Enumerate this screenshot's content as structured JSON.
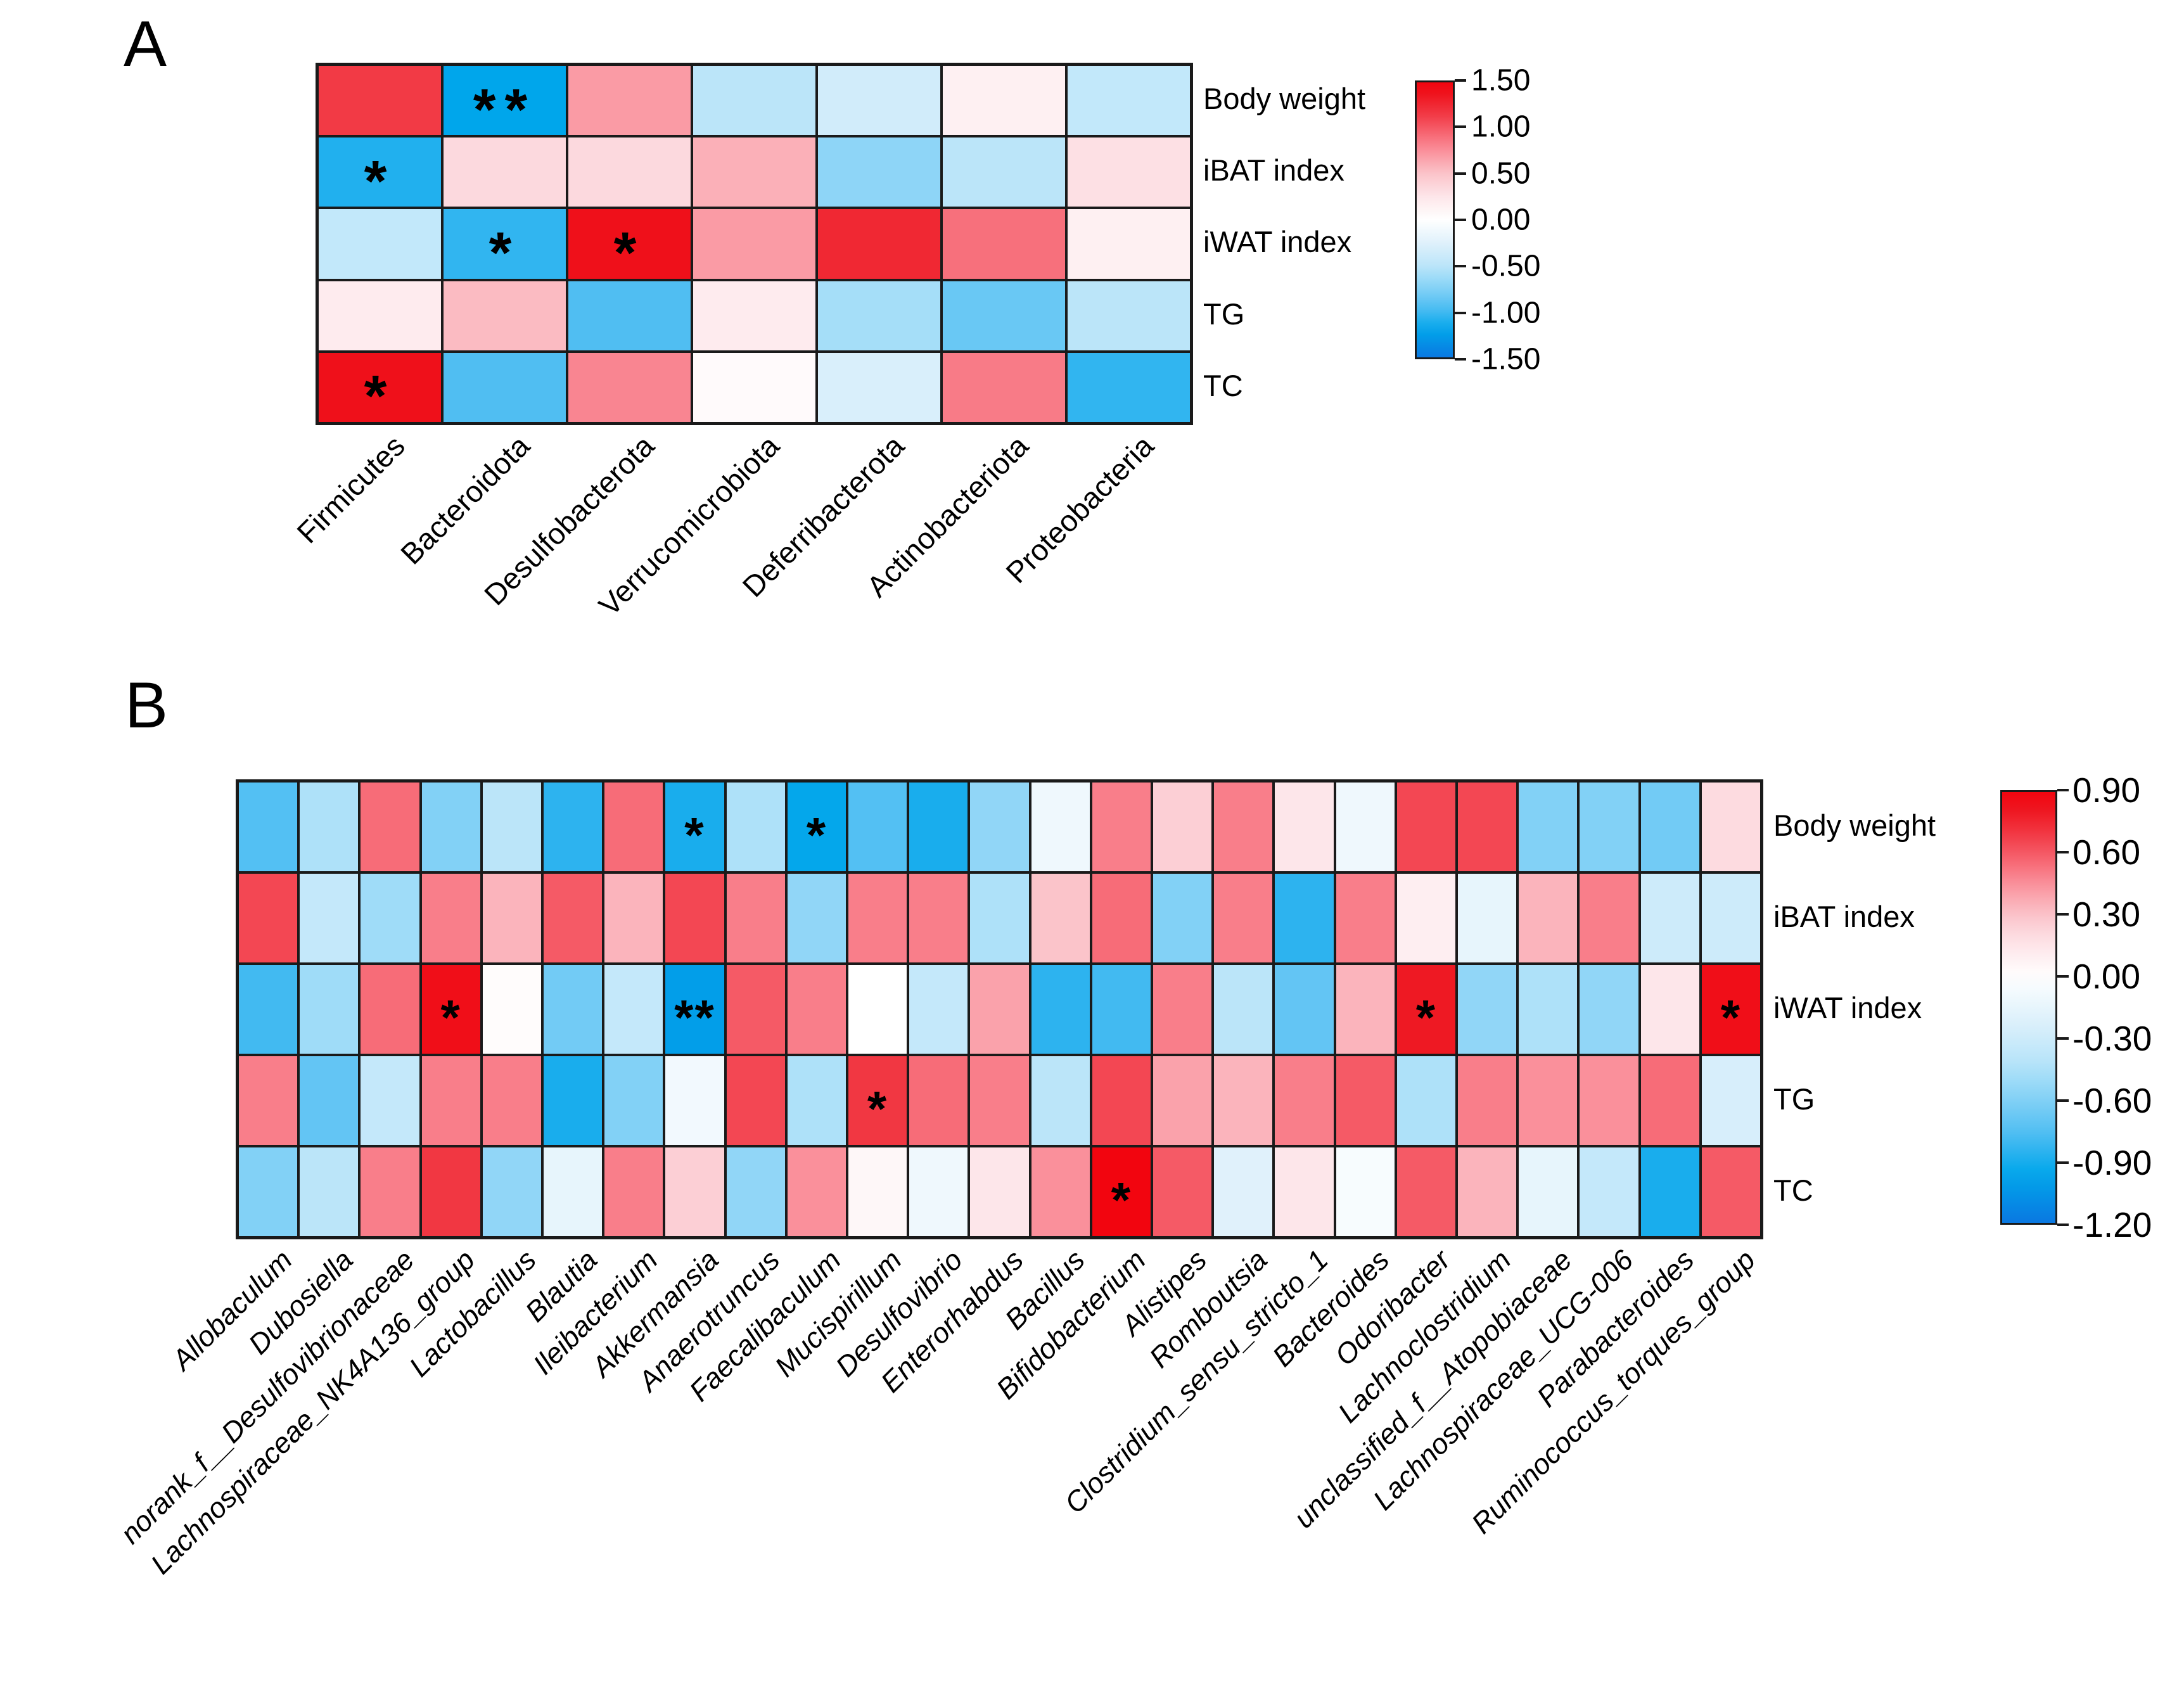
{
  "figure": {
    "background": "#FFFFFF",
    "positive_color": "#F2050F",
    "negative_color": "#0A78E1",
    "zero_color": "#FFFFFF",
    "gridline_color": "#1A1A1A"
  },
  "chart_data": [
    {
      "type": "heatmap",
      "panel_label": "A",
      "rows": [
        "Body weight",
        "iBAT index",
        "iWAT index",
        "TG",
        "TC"
      ],
      "columns": [
        "Firmicutes",
        "Bacteroidota",
        "Desulfobacterota",
        "Verrucomicrobiota",
        "Deferribacterota",
        "Actinobacteriota",
        "Proteobacteria"
      ],
      "values": [
        [
          1.15,
          -1.2,
          0.7,
          -0.5,
          -0.35,
          0.15,
          -0.45
        ],
        [
          -1.1,
          0.35,
          0.35,
          0.6,
          -0.7,
          -0.5,
          0.3
        ],
        [
          -0.45,
          -1.05,
          1.4,
          0.7,
          1.25,
          0.9,
          0.15
        ],
        [
          0.2,
          0.55,
          -0.95,
          0.2,
          -0.6,
          -0.85,
          -0.5
        ],
        [
          1.4,
          -0.95,
          0.8,
          0.05,
          -0.3,
          0.85,
          -1.05
        ]
      ],
      "significance": [
        [
          "",
          "**",
          "",
          "",
          "",
          "",
          ""
        ],
        [
          "*",
          "",
          "",
          "",
          "",
          "",
          ""
        ],
        [
          "",
          "*",
          "*",
          "",
          "",
          "",
          ""
        ],
        [
          "",
          "",
          "",
          "",
          "",
          "",
          ""
        ],
        [
          "*",
          "",
          "",
          "",
          "",
          "",
          ""
        ]
      ],
      "colorbar": {
        "vmax": 1.5,
        "vmin": -1.5,
        "ticks": [
          "1.50",
          "1.00",
          "0.50",
          "0.00",
          "-0.50",
          "-1.00",
          "-1.50"
        ]
      },
      "column_labels_italic": false,
      "legend_position": "right"
    },
    {
      "type": "heatmap",
      "panel_label": "B",
      "rows": [
        "Body weight",
        "iBAT index",
        "iWAT index",
        "TG",
        "TC"
      ],
      "columns": [
        "Allobaculum",
        "Dubosiella",
        "norank_f__Desulfovibrionaceae",
        "Lachnospiraceae_NK4A136_group",
        "Lactobacillus",
        "Blautia",
        "Ileibacterium",
        "Akkermansia",
        "Anaerotruncus",
        "Faecalibaculum",
        "Mucispirillum",
        "Desulfovibrio",
        "Enterorhabdus",
        "Bacillus",
        "Bifidobacterium",
        "Alistipes",
        "Romboutsia",
        "Clostridium_sensu_stricto_1",
        "Bacteroides",
        "Odoribacter",
        "Lachnoclostridium",
        "unclassified_f__Atopobiaceae",
        "Lachnospiraceae_UCG-006",
        "Parabacteroides",
        "Ruminococcus_torques_group"
      ],
      "values": [
        [
          -0.75,
          -0.45,
          0.55,
          -0.6,
          -0.4,
          -0.85,
          0.55,
          -0.9,
          -0.45,
          -0.95,
          -0.75,
          -0.9,
          -0.55,
          -0.1,
          0.5,
          0.25,
          0.5,
          0.15,
          -0.1,
          0.65,
          0.65,
          -0.6,
          -0.6,
          -0.65,
          0.2
        ],
        [
          0.65,
          -0.35,
          -0.5,
          0.5,
          0.35,
          0.6,
          0.35,
          0.65,
          0.5,
          -0.55,
          0.5,
          0.5,
          -0.45,
          0.3,
          0.55,
          -0.6,
          0.5,
          -0.85,
          0.5,
          0.1,
          -0.15,
          0.35,
          0.5,
          -0.3,
          -0.3
        ],
        [
          -0.8,
          -0.5,
          0.55,
          0.85,
          0.02,
          -0.65,
          -0.35,
          -1.0,
          0.6,
          0.5,
          0.0,
          -0.35,
          0.4,
          -0.85,
          -0.8,
          0.5,
          -0.4,
          -0.7,
          0.35,
          0.8,
          -0.55,
          -0.45,
          -0.55,
          0.15,
          0.85
        ],
        [
          0.5,
          -0.7,
          -0.35,
          0.5,
          0.5,
          -0.9,
          -0.6,
          -0.08,
          0.65,
          -0.45,
          0.7,
          0.55,
          0.5,
          -0.4,
          0.65,
          0.4,
          0.35,
          0.5,
          0.6,
          -0.45,
          0.5,
          0.45,
          0.45,
          0.55,
          -0.25
        ],
        [
          -0.6,
          -0.4,
          0.5,
          0.7,
          -0.55,
          -0.15,
          0.5,
          0.25,
          -0.55,
          0.45,
          0.05,
          -0.1,
          0.15,
          0.45,
          0.9,
          0.6,
          -0.2,
          0.15,
          -0.05,
          0.6,
          0.35,
          -0.15,
          -0.35,
          -0.9,
          0.6
        ]
      ],
      "significance": [
        [
          "",
          "",
          "",
          "",
          "",
          "",
          "",
          "*",
          "",
          "*",
          "",
          "",
          "",
          "",
          "",
          "",
          "",
          "",
          "",
          "",
          "",
          "",
          "",
          "",
          ""
        ],
        [
          "",
          "",
          "",
          "",
          "",
          "",
          "",
          "",
          "",
          "",
          "",
          "",
          "",
          "",
          "",
          "",
          "",
          "",
          "",
          "",
          "",
          "",
          "",
          "",
          ""
        ],
        [
          "",
          "",
          "",
          "*",
          "",
          "",
          "",
          "**",
          "",
          "",
          "",
          "",
          "",
          "",
          "",
          "",
          "",
          "",
          "",
          "*",
          "",
          "",
          "",
          "",
          "*"
        ],
        [
          "",
          "",
          "",
          "",
          "",
          "",
          "",
          "",
          "",
          "",
          "*",
          "",
          "",
          "",
          "",
          "",
          "",
          "",
          "",
          "",
          "",
          "",
          "",
          "",
          ""
        ],
        [
          "",
          "",
          "",
          "",
          "",
          "",
          "",
          "",
          "",
          "",
          "",
          "",
          "",
          "",
          "*",
          "",
          "",
          "",
          "",
          "",
          "",
          "",
          "",
          "",
          ""
        ]
      ],
      "colorbar": {
        "vmax": 0.9,
        "vmin": -1.2,
        "ticks": [
          "0.90",
          "0.60",
          "0.30",
          "0.00",
          "-0.30",
          "-0.60",
          "-0.90",
          "-1.20"
        ]
      },
      "column_labels_italic": true,
      "legend_position": "right"
    }
  ]
}
